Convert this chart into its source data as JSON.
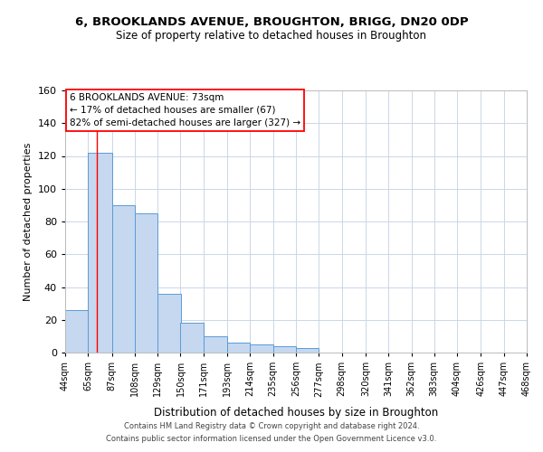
{
  "title": "6, BROOKLANDS AVENUE, BROUGHTON, BRIGG, DN20 0DP",
  "subtitle": "Size of property relative to detached houses in Broughton",
  "xlabel": "Distribution of detached houses by size in Broughton",
  "ylabel": "Number of detached properties",
  "bar_values": [
    26,
    122,
    90,
    85,
    36,
    18,
    10,
    6,
    5,
    4,
    3,
    0,
    0,
    0,
    0,
    0,
    0,
    0,
    0,
    0,
    2
  ],
  "bin_labels": [
    "44sqm",
    "65sqm",
    "87sqm",
    "108sqm",
    "129sqm",
    "150sqm",
    "171sqm",
    "193sqm",
    "214sqm",
    "235sqm",
    "256sqm",
    "277sqm",
    "298sqm",
    "320sqm",
    "341sqm",
    "362sqm",
    "383sqm",
    "404sqm",
    "426sqm",
    "447sqm",
    "468sqm"
  ],
  "ylim": [
    0,
    160
  ],
  "yticks": [
    0,
    20,
    40,
    60,
    80,
    100,
    120,
    140,
    160
  ],
  "bar_color": "#c5d8f0",
  "bar_edge_color": "#5b9bd5",
  "property_line_x": 73,
  "bin_edges": [
    44,
    65,
    87,
    108,
    129,
    150,
    171,
    193,
    214,
    235,
    256,
    277,
    298,
    320,
    341,
    362,
    383,
    404,
    426,
    447,
    468
  ],
  "annotation_title": "6 BROOKLANDS AVENUE: 73sqm",
  "annotation_line1": "← 17% of detached houses are smaller (67)",
  "annotation_line2": "82% of semi-detached houses are larger (327) →",
  "footer_line1": "Contains HM Land Registry data © Crown copyright and database right 2024.",
  "footer_line2": "Contains public sector information licensed under the Open Government Licence v3.0.",
  "background_color": "#ffffff",
  "grid_color": "#ccd6e8"
}
